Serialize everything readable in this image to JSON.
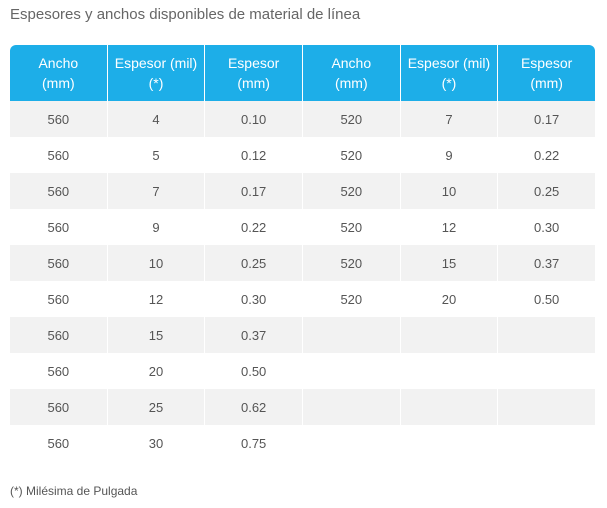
{
  "title": "Espesores y anchos disponibles de material de línea",
  "table": {
    "headers": [
      [
        "Ancho",
        "(mm)"
      ],
      [
        "Espesor (mil)",
        "(*)"
      ],
      [
        "Espesor",
        "(mm)"
      ],
      [
        "Ancho",
        "(mm)"
      ],
      [
        "Espesor (mil)",
        "(*)"
      ],
      [
        "Espesor",
        "(mm)"
      ]
    ],
    "rows": [
      [
        "560",
        "4",
        "0.10",
        "520",
        "7",
        "0.17"
      ],
      [
        "560",
        "5",
        "0.12",
        "520",
        "9",
        "0.22"
      ],
      [
        "560",
        "7",
        "0.17",
        "520",
        "10",
        "0.25"
      ],
      [
        "560",
        "9",
        "0.22",
        "520",
        "12",
        "0.30"
      ],
      [
        "560",
        "10",
        "0.25",
        "520",
        "15",
        "0.37"
      ],
      [
        "560",
        "12",
        "0.30",
        "520",
        "20",
        "0.50"
      ],
      [
        "560",
        "15",
        "0.37",
        "",
        "",
        ""
      ],
      [
        "560",
        "20",
        "0.50",
        "",
        "",
        ""
      ],
      [
        "560",
        "25",
        "0.62",
        "",
        "",
        ""
      ],
      [
        "560",
        "30",
        "0.75",
        "",
        "",
        ""
      ]
    ]
  },
  "footnote": "(*) Milésima de Pulgada",
  "colors": {
    "header_bg": "#1daee8",
    "header_text": "#ffffff",
    "stripe": "#f2f2f2"
  }
}
